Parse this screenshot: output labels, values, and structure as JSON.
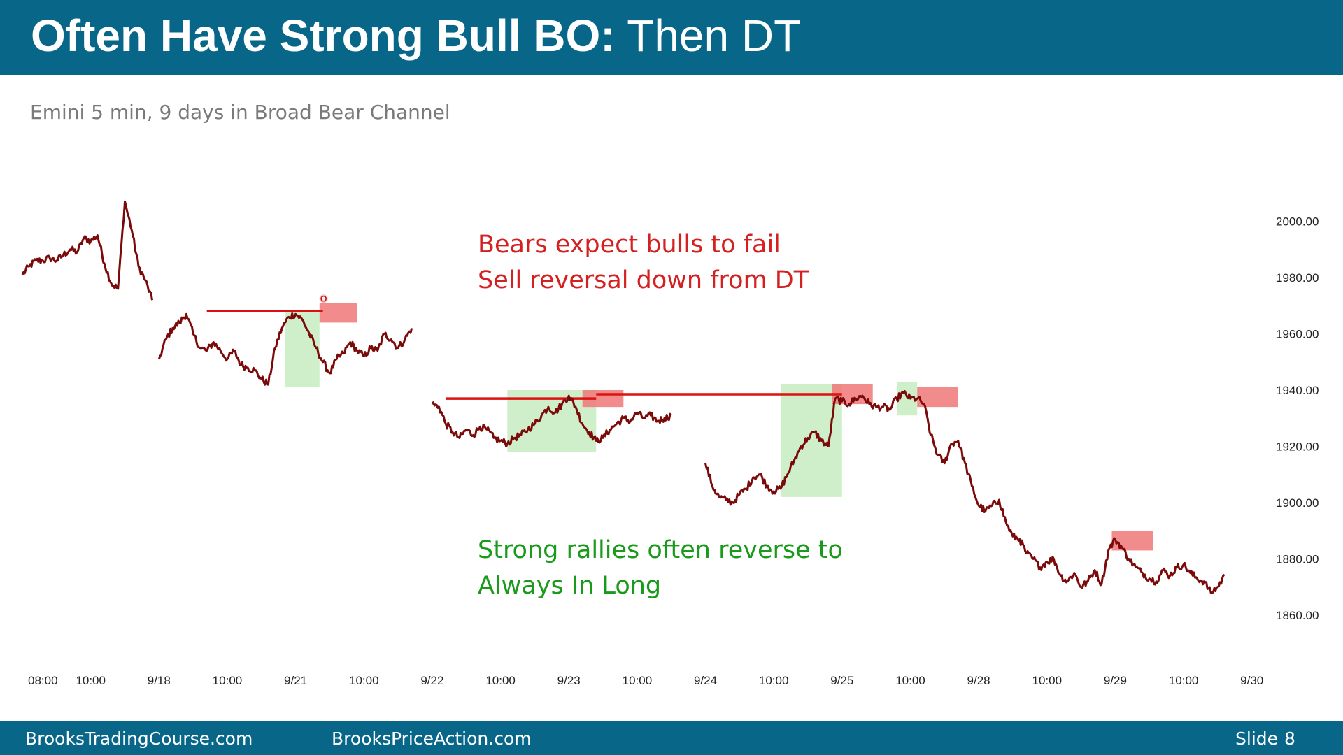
{
  "header": {
    "title_bold": "Often Have Strong Bull BO:",
    "title_rest": " Then DT",
    "bg_color": "#086789"
  },
  "subtitle": "Emini 5 min, 9 days in Broad Bear Channel",
  "annotations": {
    "bear_line1": "Bears expect bulls to fail",
    "bear_line2": "Sell reversal down from DT",
    "bull_line1": "Strong rallies often reverse to",
    "bull_line2": "Always In Long",
    "bear_color": "#d42020",
    "bull_color": "#1a9a1a"
  },
  "footer": {
    "site1": "BrooksTradingCourse.com",
    "site2": "BrooksPriceAction.com",
    "slide_label": "Slide",
    "slide_number": "8"
  },
  "chart_data": {
    "type": "line",
    "title": "",
    "xlabel": "",
    "ylabel": "",
    "ylim": [
      1850,
      2015
    ],
    "y_ticks": [
      "2000.00",
      "1980.00",
      "1960.00",
      "1940.00",
      "1920.00",
      "1900.00",
      "1880.00",
      "1860.00"
    ],
    "x_tick_labels": [
      "08:00",
      "10:00",
      "9/18",
      "10:00",
      "9/21",
      "10:00",
      "9/22",
      "10:00",
      "9/23",
      "10:00",
      "9/24",
      "10:00",
      "9/25",
      "10:00",
      "9/28",
      "10:00",
      "9/29",
      "10:00",
      "9/30"
    ],
    "x_tick_index": [
      3,
      10,
      20,
      30,
      40,
      50,
      60,
      70,
      80,
      90,
      100,
      110,
      120,
      130,
      140,
      150,
      160,
      170,
      180
    ],
    "line_color": "#7b0a0a",
    "series": [
      {
        "segments": [
          {
            "start": 0,
            "values": [
              1981,
              1984,
              1986,
              1986,
              1987,
              1986,
              1988,
              1990,
              1989,
              1994,
              1993,
              1995,
              1985,
              1978,
              1976,
              2007,
              1997,
              1984,
              1979,
              1972
            ]
          },
          {
            "start": 20,
            "values": [
              1951,
              1958,
              1962,
              1964,
              1967,
              1960,
              1955,
              1954,
              1957,
              1954,
              1951,
              1954,
              1949,
              1948,
              1947,
              1944,
              1942,
              1955,
              1962,
              1966,
              1967,
              1965,
              1960,
              1955,
              1950,
              1946,
              1951,
              1953,
              1957,
              1954,
              1952,
              1955,
              1954,
              1960,
              1958,
              1955,
              1958,
              1962
            ]
          },
          {
            "start": 60,
            "values": [
              1935,
              1934,
              1928,
              1925,
              1923,
              1926,
              1924,
              1927,
              1926,
              1923,
              1922,
              1921,
              1923,
              1924,
              1926,
              1928,
              1931,
              1934,
              1932,
              1935,
              1938,
              1934,
              1928,
              1925,
              1922,
              1923,
              1926,
              1928,
              1930,
              1929,
              1932,
              1930,
              1931,
              1929,
              1930,
              1931
            ]
          },
          {
            "start": 100,
            "values": [
              1914,
              1906,
              1902,
              1901,
              1900,
              1903,
              1905,
              1909,
              1910,
              1906,
              1904,
              1905,
              1910,
              1915,
              1920,
              1923,
              1925,
              1922,
              1920,
              1937,
              1936,
              1935,
              1937,
              1938,
              1935,
              1934,
              1934,
              1933,
              1937,
              1939,
              1937,
              1937,
              1935,
              1924,
              1917,
              1914,
              1921,
              1922,
              1914,
              1906,
              1899,
              1897,
              1899,
              1901,
              1893,
              1888,
              1887,
              1882,
              1880,
              1877,
              1879,
              1880,
              1874,
              1872,
              1875,
              1870,
              1872,
              1876,
              1871,
              1883,
              1887,
              1884,
              1880,
              1877,
              1875,
              1873,
              1872,
              1876,
              1874,
              1877,
              1878,
              1875,
              1873,
              1872,
              1868,
              1870,
              1874
            ]
          }
        ]
      }
    ],
    "green_zones": [
      {
        "x0": 38.5,
        "x1": 43.5,
        "y0": 1941,
        "y1": 1968
      },
      {
        "x0": 71,
        "x1": 84,
        "y0": 1918,
        "y1": 1940
      },
      {
        "x0": 111,
        "x1": 120,
        "y0": 1902,
        "y1": 1942
      },
      {
        "x0": 128,
        "x1": 131,
        "y0": 1931,
        "y1": 1943
      }
    ],
    "red_zones": [
      {
        "x0": 43.5,
        "x1": 49,
        "y0": 1964,
        "y1": 1971
      },
      {
        "x0": 82,
        "x1": 88,
        "y0": 1934,
        "y1": 1940
      },
      {
        "x0": 118.5,
        "x1": 124.5,
        "y0": 1935,
        "y1": 1942
      },
      {
        "x0": 131,
        "x1": 137,
        "y0": 1934,
        "y1": 1941
      },
      {
        "x0": 159.5,
        "x1": 165.5,
        "y0": 1883,
        "y1": 1890
      }
    ],
    "dt_lines": [
      {
        "x0": 27,
        "x1": 44,
        "y": 1968
      },
      {
        "x0": 62,
        "x1": 84,
        "y": 1937
      },
      {
        "x0": 84,
        "x1": 120,
        "y": 1938.5
      }
    ],
    "markers": [
      {
        "x": 44,
        "y": 1972.5
      }
    ]
  }
}
